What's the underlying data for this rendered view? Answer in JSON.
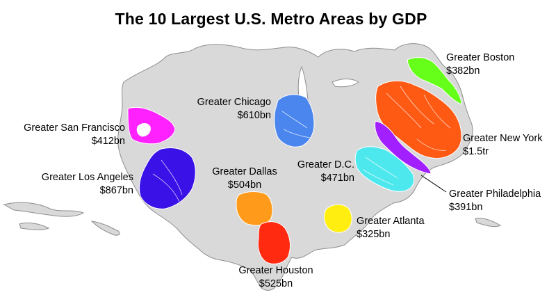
{
  "title": "The 10 Largest U.S. Metro Areas by GDP",
  "metros": [
    {
      "id": "boston",
      "name": "Greater Boston",
      "gdp": "$382bn",
      "color": "#66ff1a"
    },
    {
      "id": "new-york",
      "name": "Greater New York",
      "gdp": "$1.5tr",
      "color": "#ff5a14"
    },
    {
      "id": "philadelphia",
      "name": "Greater Philadelphia",
      "gdp": "$391bn",
      "color": "#a21fff"
    },
    {
      "id": "dc",
      "name": "Greater D.C.",
      "gdp": "$471bn",
      "color": "#4de8ee"
    },
    {
      "id": "atlanta",
      "name": "Greater Atlanta",
      "gdp": "$325bn",
      "color": "#ffee10"
    },
    {
      "id": "chicago",
      "name": "Greater Chicago",
      "gdp": "$610bn",
      "color": "#4a86ee"
    },
    {
      "id": "dallas",
      "name": "Greater Dallas",
      "gdp": "$504bn",
      "color": "#ff9a1a"
    },
    {
      "id": "houston",
      "name": "Greater Houston",
      "gdp": "$525bn",
      "color": "#ff2a10"
    },
    {
      "id": "los-angeles",
      "name": "Greater Los Angeles",
      "gdp": "$867bn",
      "color": "#3a12e8"
    },
    {
      "id": "san-francisco",
      "name": "Greater San Francisco",
      "gdp": "$412bn",
      "color": "#ff22ff"
    }
  ],
  "base_color": "#d9d9d9"
}
